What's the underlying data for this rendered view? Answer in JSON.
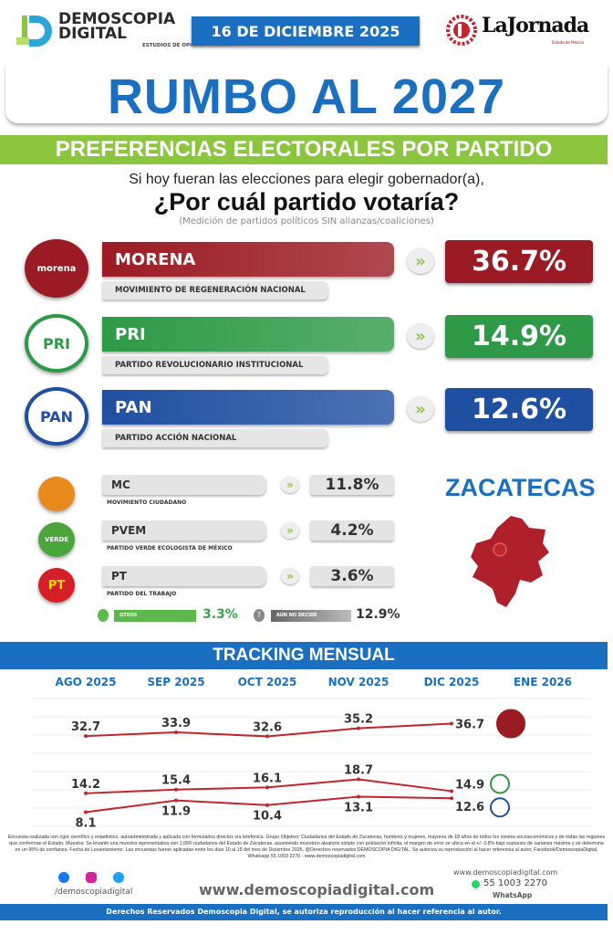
{
  "header": {
    "brand_line1": "DEMOSCOPIA",
    "brand_line2": "DIGITAL",
    "brand_tagline": "ESTUDIOS DE OPINIÓN PÚBLICA",
    "date": "16 DE DICIEMBRE 2025",
    "partner": "LaJornada",
    "partner_sub": "Estado de México"
  },
  "title": "RUMBO AL 2027",
  "section": "PREFERENCIAS ELECTORALES POR PARTIDO",
  "question": {
    "line1": "Si hoy fueran las elecciones para elegir gobernador(a),",
    "line2": "¿Por cuál partido votaría?",
    "note": "(Medición de partidos políticos SIN alianzas/coaliciones)"
  },
  "main_parties": [
    {
      "short": "MORENA",
      "name": "MOVIMIENTO DE REGENERACIÓN NACIONAL",
      "value": "36.7%",
      "logo": "morena",
      "color": "#9b1b24"
    },
    {
      "short": "PRI",
      "name": "PARTIDO REVOLUCIONARIO INSTITUCIONAL",
      "value": "14.9%",
      "logo": "PRI",
      "color": "#2e9a47"
    },
    {
      "short": "PAN",
      "name": "PARTIDO ACCIÓN NACIONAL",
      "value": "12.6%",
      "logo": "PAN",
      "color": "#1f4fa0"
    }
  ],
  "minor_parties": [
    {
      "short": "MC",
      "name": "MOVIMIENTO CIUDADANO",
      "value": "11.8%",
      "logo": "",
      "color": "#e98b1c"
    },
    {
      "short": "PVEM",
      "name": "PARTIDO VERDE ECOLOGISTA DE MÉXICO",
      "value": "4.2%",
      "logo": "VERDE",
      "color": "#4aa63a"
    },
    {
      "short": "PT",
      "name": "PARTIDO DEL TRABAJO",
      "value": "3.6%",
      "logo": "PT",
      "color": "#d51f26"
    }
  ],
  "others": {
    "label": "OTROS",
    "value": "3.3%",
    "color": "#5cb84a"
  },
  "undecided": {
    "label": "AÚN NO DECIDE",
    "value": "12.9%",
    "color": "#777777"
  },
  "state": "ZACATECAS",
  "chevron_icon": "»",
  "chart_data": {
    "type": "line",
    "title": "TRACKING MENSUAL",
    "categories": [
      "AGO 2025",
      "SEP 2025",
      "OCT 2025",
      "NOV 2025",
      "DIC 2025",
      "ENE 2026"
    ],
    "series": [
      {
        "party": "morena",
        "values": [
          32.7,
          33.9,
          32.6,
          35.2,
          36.7,
          null
        ],
        "color": "#c0272d"
      },
      {
        "party": "PRI",
        "values": [
          14.2,
          15.4,
          16.1,
          18.7,
          14.9,
          null
        ],
        "color": "#c0272d"
      },
      {
        "party": "PAN",
        "values": [
          8.1,
          11.9,
          10.4,
          13.1,
          12.6,
          null
        ],
        "color": "#c0272d"
      }
    ],
    "grid": true
  },
  "footer": {
    "methodology": "Encuesta realizada con rigor científico y estadístico, autoadministrada y aplicada con formularios directos vía telefónica. Grupo Objetivo: Ciudadanos del Estado de Zacatecas, hombres y mujeres, mayores de 18 años de todos los niveles socioeconómicos y de todas las regiones que conforman el Estado. Muestra: Se levantó una muestra representativa con 1,000 ciudadanos del Estado de Zacatecas, asumiendo muestreo aleatorio simple con población infinita, el margen de error se ubica en el +/- 3.8% bajo supuesto de varianza máxima y se determina en un 95% de confianza. Fecha de Levantamiento. Las encuestas fueron aplicadas entre los días 10 al 15 del mes de Diciembre 2025. @Derechos reservados DEMOSCOPIA DIGITAL. Se autoriza su reproducción al hacer referencia al autor, Facebook/DemoscopiaDigital, Whatsapp 55 1003 2270 - www.demoscopiadigital.com",
    "social_handle": "/demoscopiadigital",
    "website": "www.demoscopiadigital.com",
    "website_small": "www.demoscopiadigital.com",
    "phone": "55 1003 2270",
    "whatsapp_label": "WhatsApp",
    "rights": "Derechos Reservados Demoscopia Digital, se autoriza reproducción al hacer referencia al autor."
  }
}
